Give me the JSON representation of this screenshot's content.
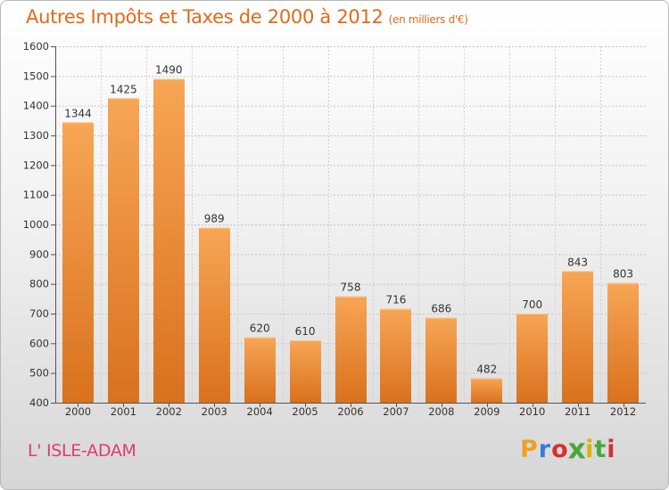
{
  "header": {
    "title": "Autres Impôts et Taxes de 2000 à 2012",
    "subtitle": "(en milliers d'€)"
  },
  "footer": {
    "city": "L' ISLE-ADAM",
    "brand": {
      "text": "Proxiti",
      "letter_colors": [
        "#f0a020",
        "#3b7bd8",
        "#d62f2f",
        "#47a83a",
        "#e0b000",
        "#47a83a",
        "#d62f2f"
      ]
    }
  },
  "colors": {
    "bar_light": "#f7a655",
    "bar_dark": "#d9711e",
    "title": "#e06a1a",
    "city": "#dd3d6b"
  },
  "chart_data": {
    "type": "bar",
    "categories": [
      "2000",
      "2001",
      "2002",
      "2003",
      "2004",
      "2005",
      "2006",
      "2007",
      "2008",
      "2009",
      "2010",
      "2011",
      "2012"
    ],
    "values": [
      1344,
      1425,
      1490,
      989,
      620,
      610,
      758,
      716,
      686,
      482,
      700,
      843,
      803
    ],
    "data_labels": [
      "1344",
      "1425",
      "1490",
      "989",
      "620",
      "610",
      "758",
      "716",
      "686",
      "482",
      "700",
      "843",
      "803"
    ],
    "yticks": [
      400,
      500,
      600,
      700,
      800,
      900,
      1000,
      1100,
      1200,
      1300,
      1400,
      1500,
      1600
    ],
    "ylim": [
      400,
      1600
    ],
    "title": "Autres Impôts et Taxes de 2000 à 2012",
    "xlabel": "",
    "ylabel": "",
    "grid": true
  }
}
